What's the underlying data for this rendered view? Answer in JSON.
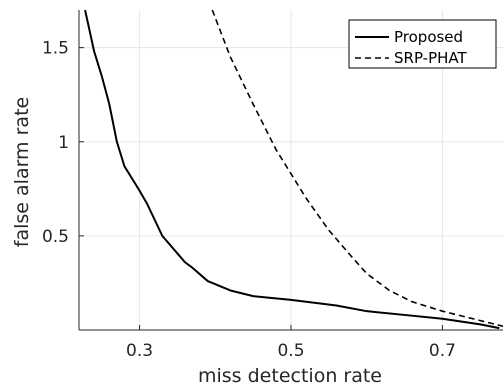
{
  "chart_data": {
    "type": "line",
    "title": "",
    "xlabel": "miss detection rate",
    "ylabel": "false alarm rate",
    "xlim": [
      0.22,
      0.78
    ],
    "ylim": [
      0.0,
      1.7
    ],
    "xticks": [
      0.3,
      0.5,
      0.7
    ],
    "xtick_labels": [
      "0.3",
      "0.5",
      "0.7"
    ],
    "yticks": [
      0.5,
      1.0,
      1.5
    ],
    "ytick_labels": [
      "0.5",
      "1",
      "1.5"
    ],
    "grid": true,
    "legend_position": "top-right",
    "colors": {
      "line": "#000000",
      "grid": "#e6e6e6",
      "axis": "#262626"
    },
    "series": [
      {
        "name": "Proposed",
        "style": "solid",
        "x": [
          0.228,
          0.24,
          0.25,
          0.26,
          0.27,
          0.28,
          0.3,
          0.31,
          0.33,
          0.36,
          0.37,
          0.39,
          0.42,
          0.45,
          0.5,
          0.56,
          0.6,
          0.65,
          0.7,
          0.75,
          0.775
        ],
        "y": [
          1.7,
          1.48,
          1.35,
          1.2,
          1.0,
          0.87,
          0.74,
          0.67,
          0.5,
          0.36,
          0.33,
          0.26,
          0.21,
          0.18,
          0.16,
          0.13,
          0.1,
          0.08,
          0.06,
          0.03,
          0.01
        ]
      },
      {
        "name": "SRP-PHAT",
        "style": "dashed",
        "x": [
          0.396,
          0.42,
          0.45,
          0.48,
          0.5,
          0.52,
          0.55,
          0.58,
          0.6,
          0.63,
          0.66,
          0.7,
          0.73,
          0.76,
          0.78
        ],
        "y": [
          1.7,
          1.45,
          1.2,
          0.96,
          0.83,
          0.7,
          0.53,
          0.39,
          0.3,
          0.21,
          0.15,
          0.1,
          0.07,
          0.04,
          0.02
        ]
      }
    ]
  }
}
